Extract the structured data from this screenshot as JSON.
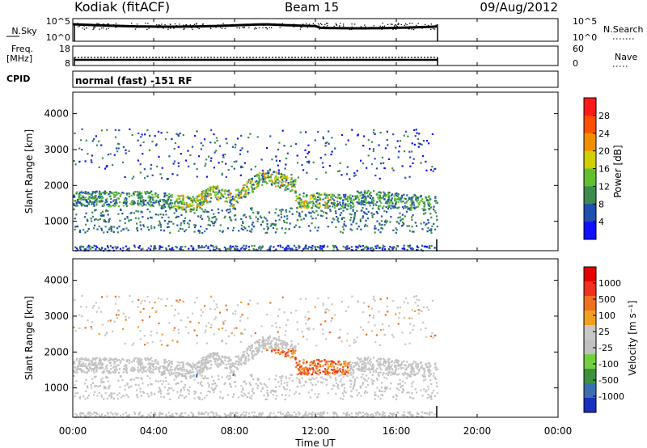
{
  "header": {
    "station": "Kodiak (fitACF)",
    "beam": "Beam 15",
    "date": "09/Aug/2012"
  },
  "chart_data": [
    {
      "type": "line",
      "name": "nsky-panel",
      "left_label": "N.Sky",
      "right_label": "N.Search",
      "left_ticks": [
        "10^5",
        "10^0"
      ],
      "right_ticks": [
        "10^5",
        "10^0"
      ],
      "data_end_hour": 18.0
    },
    {
      "type": "line",
      "name": "freq-panel",
      "left_label_line1": "Freq.",
      "left_label_line2": "[MHz]",
      "right_label": "Nave",
      "left_ticks": [
        "18",
        "8"
      ],
      "right_ticks": [
        "60",
        "0"
      ],
      "data_end_hour": 18.0
    },
    {
      "type": "text",
      "name": "cpid-panel",
      "label": "CPID",
      "mode_text": "normal (fast) -151 RF"
    },
    {
      "type": "heatmap",
      "name": "power-panel",
      "ylabel": "Slant Range [km]",
      "yticks": [
        "1000",
        "2000",
        "3000",
        "4000"
      ],
      "ylim": [
        180,
        4600
      ],
      "colorbar_label": "Power [dB]",
      "colorbar_ticks": [
        "4",
        "8",
        "12",
        "16",
        "20",
        "24",
        "28"
      ],
      "colors": [
        "#1010ff",
        "#2050b0",
        "#3c8c50",
        "#60c030",
        "#d0d000",
        "#f09000",
        "#ff5000",
        "#ff1a1a"
      ]
    },
    {
      "type": "heatmap",
      "name": "velocity-panel",
      "ylabel": "Slant Range [km]",
      "yticks": [
        "1000",
        "2000",
        "3000",
        "4000"
      ],
      "ylim": [
        180,
        4600
      ],
      "colorbar_label": "Velocity [m s⁻¹]",
      "colorbar_ticks": [
        "1000",
        "500",
        "100",
        "25",
        "-25",
        "-100",
        "-500",
        "-1000"
      ],
      "colors": [
        "#1a30c0",
        "#3a70b0",
        "#3c9040",
        "#70d040",
        "#c0c0c0",
        "#c8c8c8",
        "#f0a020",
        "#f07020",
        "#f03020",
        "#e80000"
      ]
    }
  ],
  "xaxis": {
    "label": "Time UT",
    "ticks": [
      "00:00",
      "04:00",
      "08:00",
      "12:00",
      "16:00",
      "20:00",
      "00:00"
    ],
    "xlim_hours": [
      0,
      24
    ]
  }
}
